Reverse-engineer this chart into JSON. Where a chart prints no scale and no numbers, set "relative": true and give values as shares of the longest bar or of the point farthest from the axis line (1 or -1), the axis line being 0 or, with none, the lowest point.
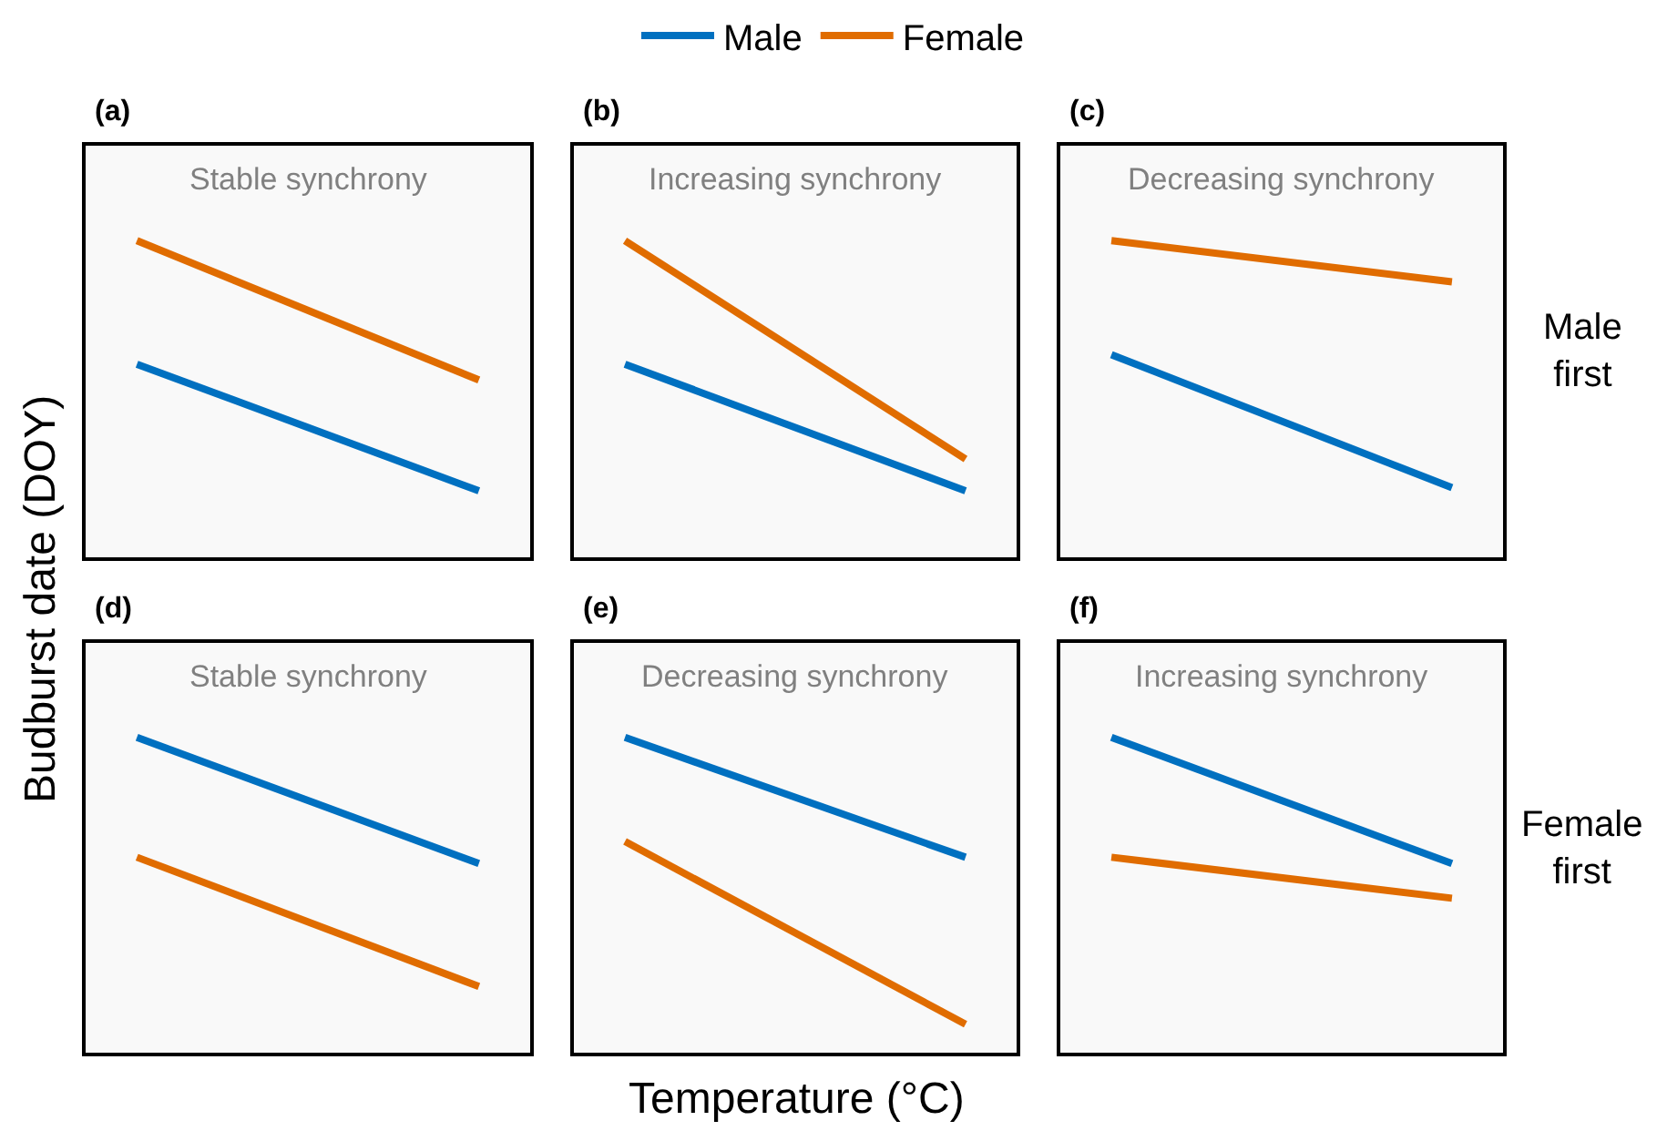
{
  "chart_data": [
    {
      "type": "line",
      "title": "(a)",
      "subtitle": "Stable synchrony",
      "categories": [
        null,
        null
      ],
      "relative": true,
      "grid": false,
      "legend": "top",
      "series": [
        {
          "name": "Male",
          "color": "#0070c0",
          "values": [
            0.61,
            0.21
          ]
        },
        {
          "name": "Female",
          "color": "#e06c00",
          "values": [
            1,
            0.56
          ]
        }
      ]
    },
    {
      "type": "line",
      "title": "(b)",
      "subtitle": "Increasing synchrony",
      "categories": [
        null,
        null
      ],
      "relative": true,
      "grid": false,
      "series": [
        {
          "color": "#0070c0",
          "values": [
            0.61,
            0.21
          ]
        },
        {
          "color": "#e06c00",
          "values": [
            1,
            0.31
          ]
        }
      ]
    },
    {
      "type": "line",
      "title": "(c)",
      "subtitle": "Decreasing synchrony",
      "categories": [
        null,
        null
      ],
      "relative": true,
      "grid": false,
      "annotations": [
        "Male first"
      ],
      "series": [
        {
          "color": "#0070c0",
          "values": [
            0.64,
            0.22
          ]
        },
        {
          "color": "#e06c00",
          "values": [
            1,
            0.87
          ]
        }
      ]
    },
    {
      "type": "line",
      "title": "(d)",
      "subtitle": "Stable synchrony",
      "categories": [
        null,
        null
      ],
      "relative": true,
      "grid": false,
      "ylabel": "Budburst date (DOY)",
      "series": [
        {
          "color": "#0070c0",
          "values": [
            1,
            0.6
          ]
        },
        {
          "color": "#e06c00",
          "values": [
            0.62,
            0.21
          ]
        }
      ]
    },
    {
      "type": "line",
      "title": "(e)",
      "subtitle": "Decreasing synchrony",
      "categories": [
        null,
        null
      ],
      "relative": true,
      "grid": false,
      "xlabel": "Temperature (°C)",
      "series": [
        {
          "color": "#0070c0",
          "values": [
            1,
            0.62
          ]
        },
        {
          "color": "#e06c00",
          "values": [
            0.67,
            0.09
          ]
        }
      ]
    },
    {
      "type": "line",
      "title": "(f)",
      "subtitle": "Increasing synchrony",
      "categories": [
        null,
        null
      ],
      "relative": true,
      "grid": false,
      "annotations": [
        "Female first"
      ],
      "series": [
        {
          "color": "#0070c0",
          "values": [
            1,
            0.6
          ]
        },
        {
          "color": "#e06c00",
          "values": [
            0.62,
            0.49
          ]
        }
      ]
    }
  ]
}
